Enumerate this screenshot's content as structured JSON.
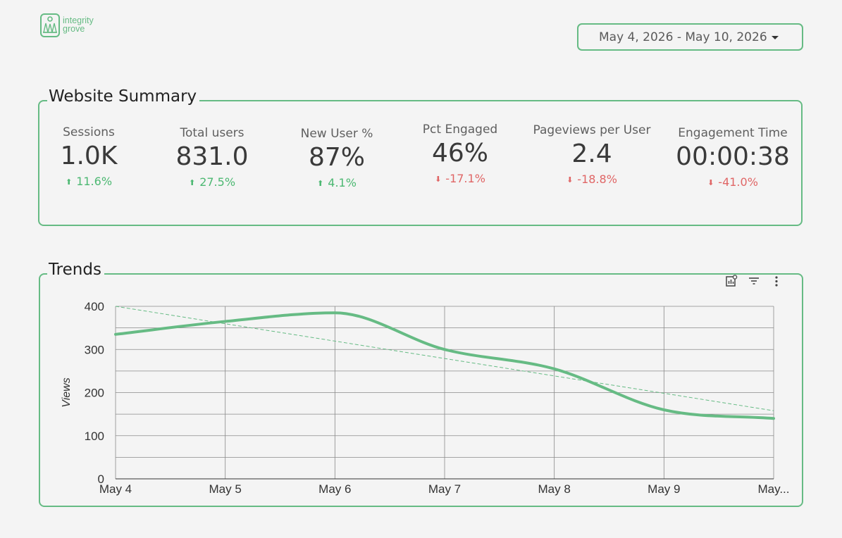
{
  "brand": {
    "line1": "integrity",
    "line2": "grove",
    "color": "#66bb84"
  },
  "date_range": {
    "value": "May 4, 2026 - May 10, 2026"
  },
  "summary": {
    "title": "Website Summary",
    "metrics": [
      {
        "label": "Sessions",
        "value": "1.0K",
        "delta": "11.6%",
        "direction": "up"
      },
      {
        "label": "Total users",
        "value": "831.0",
        "delta": "27.5%",
        "direction": "up"
      },
      {
        "label": "New User %",
        "value": "87%",
        "delta": "4.1%",
        "direction": "up"
      },
      {
        "label": "Pct Engaged",
        "value": "46%",
        "delta": "-17.1%",
        "direction": "down"
      },
      {
        "label": "Pageviews per User",
        "value": "2.4",
        "delta": "-18.8%",
        "direction": "down"
      },
      {
        "label": "Engagement Time",
        "value": "00:00:38",
        "delta": "-41.0%",
        "direction": "down"
      }
    ]
  },
  "trends": {
    "title": "Trends",
    "toolbar": [
      "chart-settings-icon",
      "filter-icon",
      "more-vert-icon"
    ]
  },
  "chart_data": {
    "type": "line",
    "x": [
      "May 4",
      "May 5",
      "May 6",
      "May 7",
      "May 8",
      "May 9",
      "May..."
    ],
    "series": [
      {
        "values": [
          335,
          365,
          385,
          300,
          255,
          160,
          140
        ],
        "color": "#66bb84",
        "style": "smooth"
      }
    ],
    "trendline": {
      "start": 400,
      "end": 158,
      "color": "#66bb84",
      "style": "dashed"
    },
    "ylabel": "Views",
    "xlabel": "",
    "ylim": [
      0,
      400
    ],
    "yticks": [
      0,
      100,
      200,
      300,
      400
    ],
    "grid": true,
    "colors": {
      "positive": "#4cb872",
      "negative": "#e06666"
    }
  }
}
